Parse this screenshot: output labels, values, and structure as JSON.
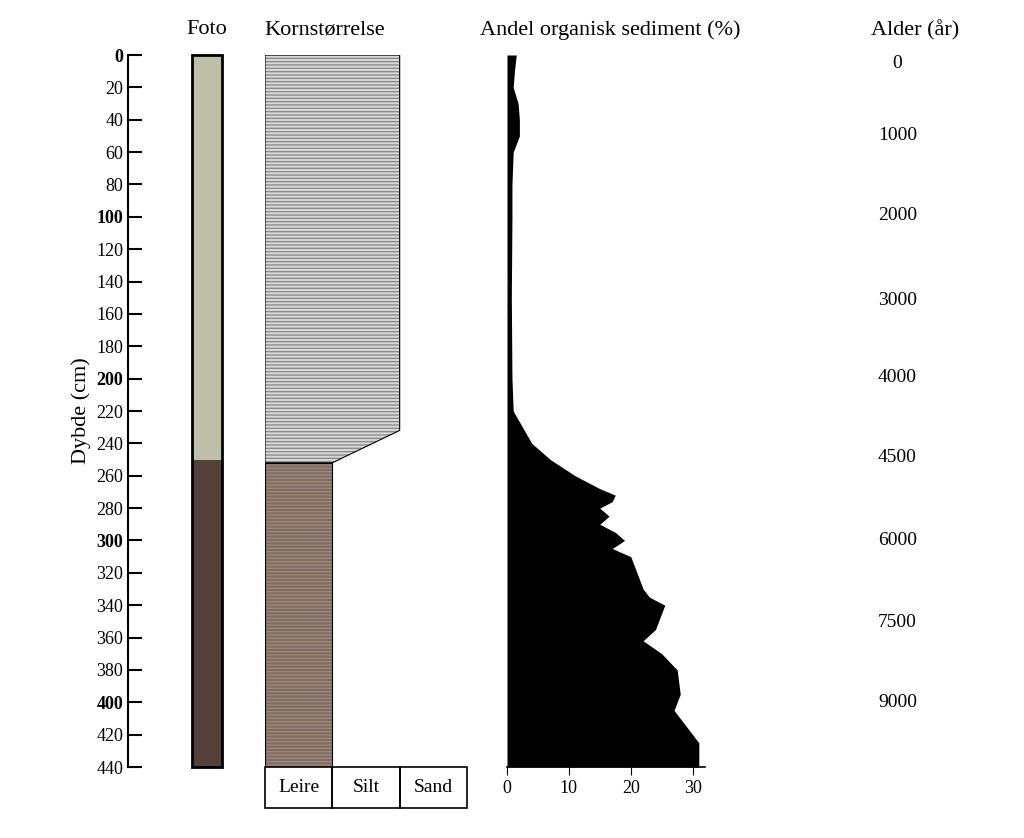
{
  "chart_data": {
    "type": "core_log",
    "ylabel": "Dybde (cm)",
    "ylim": [
      440,
      0
    ],
    "yticks": [
      0,
      20,
      40,
      60,
      80,
      100,
      120,
      140,
      160,
      180,
      200,
      220,
      240,
      260,
      280,
      300,
      320,
      340,
      360,
      380,
      400,
      420,
      440
    ],
    "photo": {
      "title": "Foto",
      "layers": [
        {
          "top": 0,
          "bottom": 250,
          "color": "#bdbfa9"
        },
        {
          "top": 250,
          "bottom": 440,
          "color": "#54403a"
        }
      ]
    },
    "grain_size": {
      "title": "Kornstørrelse",
      "categories": [
        "Leire",
        "Silt",
        "Sand"
      ],
      "units": [
        {
          "depth": [
            0,
            232,
            252
          ],
          "width": [
            2,
            2,
            1
          ],
          "color": "#d9d9d9"
        },
        {
          "depth": [
            252,
            440
          ],
          "width": [
            1,
            1
          ],
          "color": "#8b6a55"
        }
      ]
    },
    "organic": {
      "type": "area",
      "title": "Andel organisk sediment (%)",
      "xlim": [
        0,
        32
      ],
      "xticks": [
        0,
        10,
        20,
        30
      ],
      "color": "#000000",
      "depth": [
        0,
        10,
        20,
        30,
        40,
        50,
        60,
        80,
        100,
        150,
        200,
        220,
        230,
        240,
        250,
        260,
        268,
        272,
        276,
        280,
        285,
        290,
        295,
        300,
        305,
        310,
        320,
        330,
        335,
        340,
        345,
        355,
        362,
        370,
        380,
        395,
        405,
        415,
        425,
        440
      ],
      "values": [
        1.5,
        1.2,
        1,
        1.8,
        2,
        2,
        1,
        0.8,
        0.8,
        0.7,
        0.8,
        1,
        2.5,
        4,
        7,
        11,
        15,
        17.5,
        17,
        15,
        16.5,
        15,
        17.5,
        19,
        17,
        20,
        21,
        22,
        23,
        25.5,
        25,
        24,
        22,
        25,
        27.5,
        28,
        27,
        29,
        31,
        31
      ]
    },
    "age": {
      "title": "Alder (år)",
      "depth": [
        5,
        50,
        99,
        152,
        199,
        249,
        300,
        351,
        400
      ],
      "values": [
        0,
        1000,
        2000,
        3000,
        4000,
        4500,
        6000,
        7500,
        9000
      ]
    }
  }
}
